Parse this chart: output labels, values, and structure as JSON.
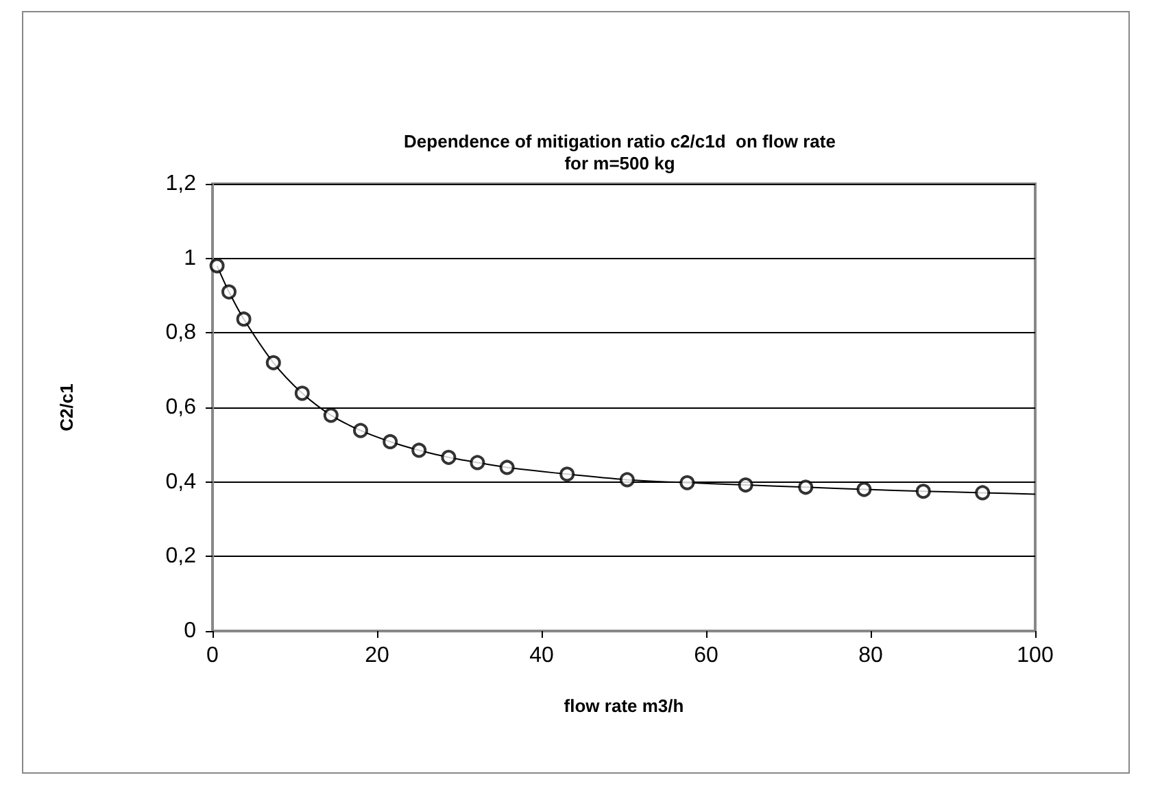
{
  "chart_data": {
    "type": "line",
    "title": "Dependence of mitigation ratio c2/c1d  on flow rate\nfor m=500 kg",
    "xlabel": "flow rate m3/h",
    "ylabel": "C2/c1",
    "series": [
      {
        "color": "#000000",
        "marker": "none",
        "x": [
          0.55,
          2.0,
          3.8,
          7.4,
          10.9,
          14.4,
          18.0,
          21.6,
          25.1,
          28.7,
          32.2,
          35.8,
          43.1,
          50.4,
          57.7,
          64.8,
          72.1,
          79.2,
          86.4,
          93.6,
          100
        ],
        "values": [
          0.98,
          0.91,
          0.837,
          0.72,
          0.638,
          0.579,
          0.538,
          0.508,
          0.485,
          0.466,
          0.452,
          0.439,
          0.421,
          0.406,
          0.398,
          0.392,
          0.386,
          0.38,
          0.375,
          0.371,
          0.367
        ]
      },
      {
        "type": "scatter",
        "color": "#000000",
        "marker": "circle",
        "x": [
          0.55,
          2.0,
          3.8,
          7.4,
          10.9,
          14.4,
          18.0,
          21.6,
          25.1,
          28.7,
          32.2,
          35.8,
          43.1,
          50.4,
          57.7,
          64.8,
          72.1,
          79.2,
          86.4,
          93.6
        ],
        "values": [
          0.98,
          0.91,
          0.837,
          0.72,
          0.638,
          0.579,
          0.538,
          0.508,
          0.485,
          0.466,
          0.452,
          0.439,
          0.421,
          0.406,
          0.398,
          0.392,
          0.386,
          0.38,
          0.375,
          0.371
        ]
      }
    ],
    "xlim": [
      0,
      100
    ],
    "xticks": [
      0,
      20,
      40,
      60,
      80,
      100
    ],
    "ylim": [
      0,
      1.2
    ],
    "yticks": [
      {
        "value": 0,
        "label": "0"
      },
      {
        "value": 0.2,
        "label": "0,2"
      },
      {
        "value": 0.4,
        "label": "0,4"
      },
      {
        "value": 0.6,
        "label": "0,6"
      },
      {
        "value": 0.8,
        "label": "0,8"
      },
      {
        "value": 1,
        "label": "1"
      },
      {
        "value": 1.2,
        "label": "1,2"
      }
    ],
    "grid": "y"
  }
}
